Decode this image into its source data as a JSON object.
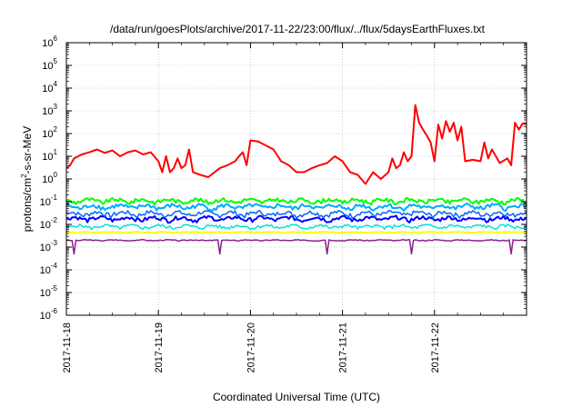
{
  "chart_data": {
    "type": "line",
    "title": "/data/run/goesPlots/archive/2017-11-22/23:00/flux/../flux/5daysEarthFluxes.txt",
    "xlabel": "Coordinated Universal Time (UTC)",
    "ylabel": "protons/cm2-s-sr-MeV",
    "ylabel_parts": {
      "pre": "protons/cm",
      "sup": "2",
      "post": "-s-sr-MeV"
    },
    "xlim": [
      "2017-11-18",
      "2017-11-23"
    ],
    "ylim": [
      1e-06,
      1000000.0
    ],
    "ylog": true,
    "grid": true,
    "legend": "none",
    "x_ticks": [
      "2017-11-18",
      "2017-11-19",
      "2017-11-20",
      "2017-11-21",
      "2017-11-22"
    ],
    "y_ticks": [
      {
        "value": 1e-06,
        "base": "10",
        "exp": "-6"
      },
      {
        "value": 1e-05,
        "base": "10",
        "exp": "-5"
      },
      {
        "value": 0.0001,
        "base": "10",
        "exp": "-4"
      },
      {
        "value": 0.001,
        "base": "10",
        "exp": "-3"
      },
      {
        "value": 0.01,
        "base": "10",
        "exp": "-2"
      },
      {
        "value": 0.1,
        "base": "10",
        "exp": "-1"
      },
      {
        "value": 1,
        "base": "10",
        "exp": "0"
      },
      {
        "value": 10,
        "base": "10",
        "exp": "1"
      },
      {
        "value": 100,
        "base": "10",
        "exp": "2"
      },
      {
        "value": 1000.0,
        "base": "10",
        "exp": "3"
      },
      {
        "value": 10000.0,
        "base": "10",
        "exp": "4"
      },
      {
        "value": 100000.0,
        "base": "10",
        "exp": "5"
      },
      {
        "value": 1000000.0,
        "base": "10",
        "exp": "6"
      }
    ],
    "series": [
      {
        "color": "#ff0000",
        "width": 2,
        "points": [
          [
            "2017-11-18T00:00",
            3
          ],
          [
            "2017-11-18T01:00",
            4
          ],
          [
            "2017-11-18T02:00",
            8
          ],
          [
            "2017-11-18T04:00",
            12
          ],
          [
            "2017-11-18T06:00",
            15
          ],
          [
            "2017-11-18T08:00",
            20
          ],
          [
            "2017-11-18T10:00",
            14
          ],
          [
            "2017-11-18T12:00",
            18
          ],
          [
            "2017-11-18T14:00",
            10
          ],
          [
            "2017-11-18T16:00",
            15
          ],
          [
            "2017-11-18T18:00",
            18
          ],
          [
            "2017-11-18T20:00",
            12
          ],
          [
            "2017-11-18T22:00",
            15
          ],
          [
            "2017-11-19T00:00",
            6
          ],
          [
            "2017-11-19T01:00",
            2
          ],
          [
            "2017-11-19T02:00",
            10
          ],
          [
            "2017-11-19T03:00",
            2
          ],
          [
            "2017-11-19T04:00",
            3
          ],
          [
            "2017-11-19T05:00",
            8
          ],
          [
            "2017-11-19T06:00",
            3
          ],
          [
            "2017-11-19T07:00",
            4
          ],
          [
            "2017-11-19T08:00",
            20
          ],
          [
            "2017-11-19T09:00",
            2
          ],
          [
            "2017-11-19T11:00",
            1.5
          ],
          [
            "2017-11-19T13:00",
            1.2
          ],
          [
            "2017-11-19T16:00",
            3
          ],
          [
            "2017-11-19T18:00",
            4
          ],
          [
            "2017-11-19T20:00",
            6
          ],
          [
            "2017-11-19T21:00",
            10
          ],
          [
            "2017-11-19T22:00",
            15
          ],
          [
            "2017-11-19T23:00",
            4
          ],
          [
            "2017-11-20T00:00",
            50
          ],
          [
            "2017-11-20T02:00",
            45
          ],
          [
            "2017-11-20T04:00",
            30
          ],
          [
            "2017-11-20T06:00",
            20
          ],
          [
            "2017-11-20T08:00",
            6
          ],
          [
            "2017-11-20T10:00",
            4
          ],
          [
            "2017-11-20T12:00",
            2
          ],
          [
            "2017-11-20T14:00",
            2
          ],
          [
            "2017-11-20T16:00",
            3
          ],
          [
            "2017-11-20T18:00",
            4
          ],
          [
            "2017-11-20T20:00",
            5
          ],
          [
            "2017-11-20T22:00",
            10
          ],
          [
            "2017-11-21T00:00",
            6
          ],
          [
            "2017-11-21T02:00",
            2
          ],
          [
            "2017-11-21T04:00",
            1.5
          ],
          [
            "2017-11-21T06:00",
            0.6
          ],
          [
            "2017-11-21T08:00",
            2
          ],
          [
            "2017-11-21T10:00",
            1
          ],
          [
            "2017-11-21T12:00",
            2
          ],
          [
            "2017-11-21T13:00",
            8
          ],
          [
            "2017-11-21T14:00",
            3
          ],
          [
            "2017-11-21T15:00",
            4
          ],
          [
            "2017-11-21T16:00",
            15
          ],
          [
            "2017-11-21T17:00",
            6
          ],
          [
            "2017-11-21T18:00",
            10
          ],
          [
            "2017-11-21T19:00",
            1800
          ],
          [
            "2017-11-21T20:00",
            300
          ],
          [
            "2017-11-21T21:00",
            150
          ],
          [
            "2017-11-21T22:00",
            80
          ],
          [
            "2017-11-21T23:00",
            40
          ],
          [
            "2017-11-22T00:00",
            6
          ],
          [
            "2017-11-22T01:00",
            250
          ],
          [
            "2017-11-22T02:00",
            60
          ],
          [
            "2017-11-22T03:00",
            350
          ],
          [
            "2017-11-22T04:00",
            120
          ],
          [
            "2017-11-22T05:00",
            300
          ],
          [
            "2017-11-22T06:00",
            50
          ],
          [
            "2017-11-22T07:00",
            200
          ],
          [
            "2017-11-22T08:00",
            6
          ],
          [
            "2017-11-22T10:00",
            7
          ],
          [
            "2017-11-22T12:00",
            6
          ],
          [
            "2017-11-22T13:00",
            40
          ],
          [
            "2017-11-22T14:00",
            8
          ],
          [
            "2017-11-22T15:00",
            20
          ],
          [
            "2017-11-22T16:00",
            10
          ],
          [
            "2017-11-22T17:00",
            5
          ],
          [
            "2017-11-22T19:00",
            8
          ],
          [
            "2017-11-22T20:00",
            4
          ],
          [
            "2017-11-22T21:00",
            300
          ],
          [
            "2017-11-22T22:00",
            150
          ],
          [
            "2017-11-22T23:00",
            280
          ],
          [
            "2017-11-23T00:00",
            250
          ]
        ]
      },
      {
        "color": "#00ff00",
        "width": 2,
        "base": 0.11,
        "amp": 0.25,
        "dips": false
      },
      {
        "color": "#00aaff",
        "width": 2,
        "base": 0.06,
        "amp": 0.28,
        "dips": false
      },
      {
        "color": "#0066ff",
        "width": 1.5,
        "base": 0.03,
        "amp": 0.28,
        "dips": false
      },
      {
        "color": "#0000ff",
        "width": 2,
        "base": 0.018,
        "amp": 0.25,
        "dips": false
      },
      {
        "color": "#00e0e0",
        "width": 1.5,
        "base": 0.008,
        "amp": 0.2,
        "dips": false
      },
      {
        "color": "#ffff00",
        "width": 2,
        "base": 0.0045,
        "amp": 0.05,
        "dips": false
      },
      {
        "color": "#882288",
        "width": 1.5,
        "base": 0.002,
        "amp": 0.06,
        "dips": true
      }
    ]
  }
}
